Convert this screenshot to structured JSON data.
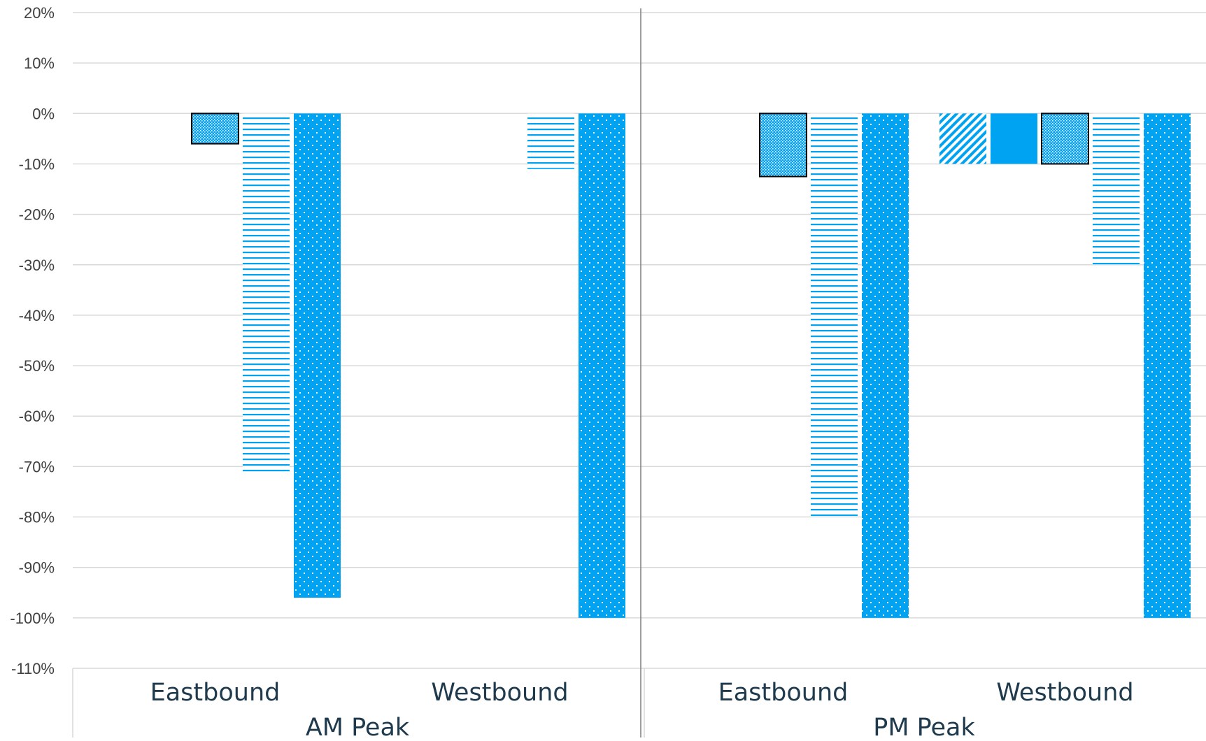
{
  "chart_data": {
    "type": "bar",
    "title": "",
    "xlabel": "",
    "ylabel": "",
    "ylim": [
      -110,
      20
    ],
    "y_ticks": [
      20,
      10,
      0,
      -10,
      -20,
      -30,
      -40,
      -50,
      -60,
      -70,
      -80,
      -90,
      -100,
      -110
    ],
    "y_tick_labels": [
      "20%",
      "10%",
      "0%",
      "-10%",
      "-20%",
      "-30%",
      "-40%",
      "-50%",
      "-60%",
      "-70%",
      "-80%",
      "-90%",
      "-100%",
      "-110%"
    ],
    "grid": true,
    "legend": "none",
    "groups": [
      {
        "label": "AM Peak",
        "categories": [
          {
            "label": "Eastbound",
            "values": [
              null,
              null,
              -6,
              -71,
              -96
            ]
          },
          {
            "label": "Westbound",
            "values": [
              null,
              null,
              null,
              -11,
              -100
            ]
          }
        ]
      },
      {
        "label": "PM Peak",
        "categories": [
          {
            "label": "Eastbound",
            "values": [
              null,
              null,
              -12.5,
              -80,
              -100
            ]
          },
          {
            "label": "Westbound",
            "values": [
              -10,
              -10,
              -10,
              -30,
              -100
            ]
          }
        ]
      }
    ],
    "series_styles": [
      {
        "pattern": "diagonal-hatch",
        "color": "#00a2f2"
      },
      {
        "pattern": "solid",
        "color": "#00a2f2"
      },
      {
        "pattern": "dense-dots-outlined",
        "color": "#00a2f2"
      },
      {
        "pattern": "horizontal-lines",
        "color": "#00a2f2"
      },
      {
        "pattern": "sparse-dots",
        "color": "#00a2f2"
      }
    ]
  }
}
